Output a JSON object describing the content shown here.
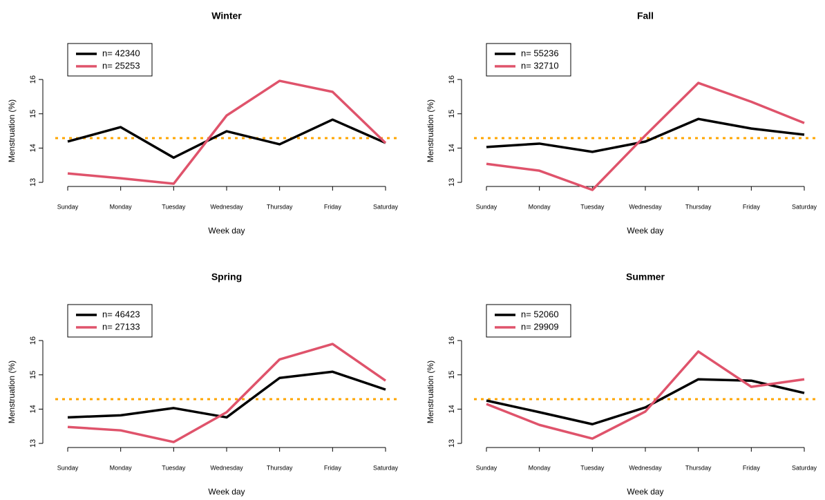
{
  "chart_data": [
    {
      "type": "line",
      "title": "Winter",
      "xlabel": "Week day",
      "ylabel": "Menstruation (%)",
      "categories": [
        "Sunday",
        "Monday",
        "Tuesday",
        "Wednesday",
        "Thursday",
        "Friday",
        "Saturday"
      ],
      "series": [
        {
          "name": "n= 42340",
          "color": "#000000",
          "values": [
            14.19,
            14.61,
            13.72,
            14.49,
            14.11,
            14.83,
            14.15
          ]
        },
        {
          "name": "n= 25253",
          "color": "#df536b",
          "values": [
            13.26,
            13.12,
            12.96,
            14.95,
            15.96,
            15.64,
            14.15
          ]
        }
      ],
      "hline": 14.29,
      "hline_color": "#ffa500",
      "ylim": [
        12.85,
        17.1
      ],
      "yticks": [
        13,
        14,
        15,
        16
      ],
      "legend": "top-left"
    },
    {
      "type": "line",
      "title": "Fall",
      "xlabel": "Week day",
      "ylabel": "Menstruation (%)",
      "categories": [
        "Sunday",
        "Monday",
        "Tuesday",
        "Wednesday",
        "Thursday",
        "Friday",
        "Saturday"
      ],
      "series": [
        {
          "name": "n= 55236",
          "color": "#000000",
          "values": [
            14.03,
            14.13,
            13.89,
            14.19,
            14.85,
            14.57,
            14.39
          ]
        },
        {
          "name": "n= 32710",
          "color": "#df536b",
          "values": [
            13.54,
            13.34,
            12.78,
            14.37,
            15.9,
            15.35,
            14.73
          ]
        }
      ],
      "hline": 14.29,
      "hline_color": "#ffa500",
      "ylim": [
        12.85,
        17.1
      ],
      "yticks": [
        13,
        14,
        15,
        16
      ],
      "legend": "top-left"
    },
    {
      "type": "line",
      "title": "Spring",
      "xlabel": "Week day",
      "ylabel": "Menstruation (%)",
      "categories": [
        "Sunday",
        "Monday",
        "Tuesday",
        "Wednesday",
        "Thursday",
        "Friday",
        "Saturday"
      ],
      "series": [
        {
          "name": "n= 46423",
          "color": "#000000",
          "values": [
            13.76,
            13.82,
            14.03,
            13.76,
            14.91,
            15.09,
            14.57
          ]
        },
        {
          "name": "n= 27133",
          "color": "#df536b",
          "values": [
            13.48,
            13.38,
            13.04,
            13.91,
            15.45,
            15.9,
            14.83
          ]
        }
      ],
      "hline": 14.29,
      "hline_color": "#ffa500",
      "ylim": [
        12.85,
        17.1
      ],
      "yticks": [
        13,
        14,
        15,
        16
      ],
      "legend": "top-left"
    },
    {
      "type": "line",
      "title": "Summer",
      "xlabel": "Week day",
      "ylabel": "Menstruation (%)",
      "categories": [
        "Sunday",
        "Monday",
        "Tuesday",
        "Wednesday",
        "Thursday",
        "Friday",
        "Saturday"
      ],
      "series": [
        {
          "name": "n= 52060",
          "color": "#000000",
          "values": [
            14.25,
            13.91,
            13.56,
            14.05,
            14.87,
            14.83,
            14.47
          ]
        },
        {
          "name": "n= 29909",
          "color": "#df536b",
          "values": [
            14.15,
            13.54,
            13.14,
            13.93,
            15.68,
            14.65,
            14.87
          ]
        }
      ],
      "hline": 14.29,
      "hline_color": "#ffa500",
      "ylim": [
        12.85,
        17.1
      ],
      "yticks": [
        13,
        14,
        15,
        16
      ],
      "legend": "top-left"
    }
  ]
}
